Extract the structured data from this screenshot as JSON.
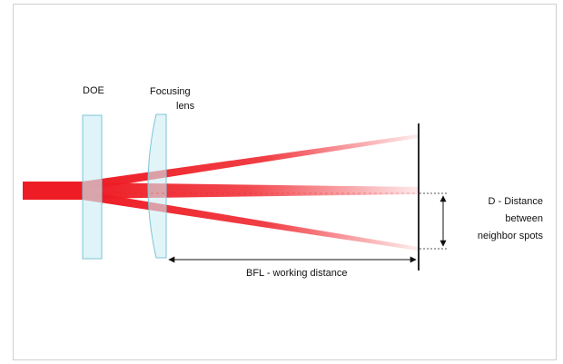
{
  "labels": {
    "doe": "DOE",
    "focusing_lens_line1": "Focusing",
    "focusing_lens_line2": "lens",
    "distance_line1": "D - Distance",
    "distance_line2": "between",
    "distance_line3": "neighbor spots",
    "bfl": "BFL - working distance"
  },
  "colors": {
    "beam": "#ee1c24",
    "optic_fill": "#cdeef5",
    "optic_stroke": "#7cc4d6",
    "screen": "#111111",
    "frame_border": "#cfcfcf"
  }
}
